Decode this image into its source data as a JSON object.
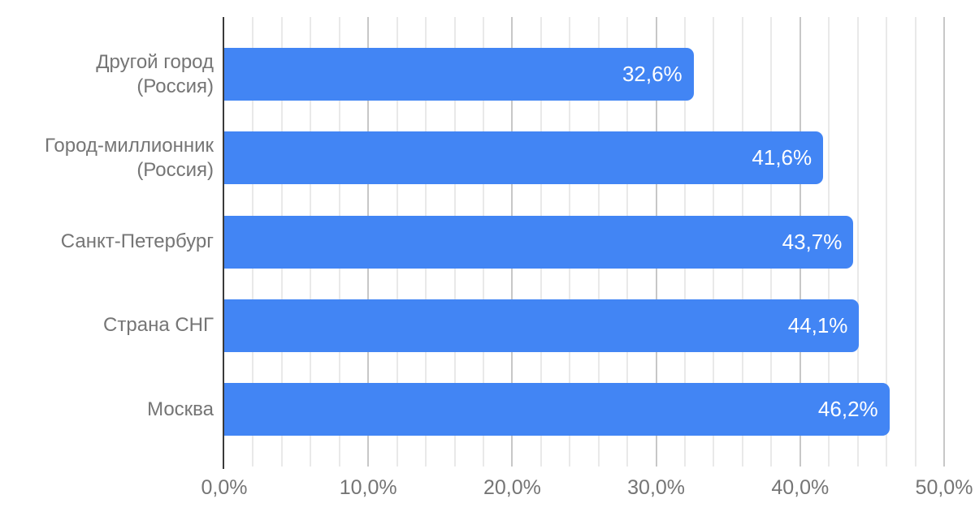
{
  "chart_data": {
    "type": "bar",
    "orientation": "horizontal",
    "title": "",
    "legend": "none",
    "grid": true,
    "categories": [
      "Другой город\n(Россия)",
      "Город-миллионник\n(Россия)",
      "Санкт-Петербург",
      "Страна СНГ",
      "Москва"
    ],
    "values": [
      32.6,
      41.6,
      43.7,
      44.1,
      46.2
    ],
    "value_labels": [
      "32,6%",
      "41,6%",
      "43,7%",
      "44,1%",
      "46,2%"
    ],
    "x_axis": {
      "min": 0,
      "max": 50,
      "ticks": [
        0,
        10,
        20,
        30,
        40,
        50
      ],
      "tick_labels": [
        "0,0%",
        "10,0%",
        "20,0%",
        "30,0%",
        "40,0%",
        "50,0%"
      ],
      "minor_gridline_step_pct": 2,
      "major_gridline_step_pct": 10
    }
  },
  "colors": {
    "bar": "#4285f4",
    "value_label": "#ffffff",
    "category_label": "#757575",
    "tick_label": "#757575",
    "gridline_minor": "#e9e9e9",
    "gridline_major": "#c7c7c7",
    "axis_line": "#3a3a3a",
    "background": "#ffffff"
  }
}
